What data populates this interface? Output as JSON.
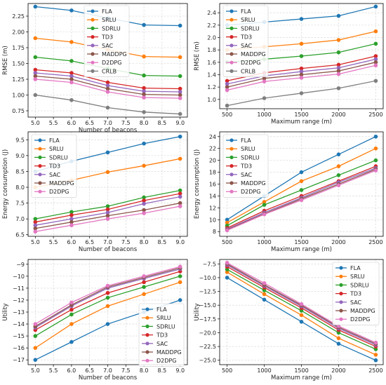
{
  "colors": {
    "FLA": "#1f77b4",
    "SRLU": "#ff7f0e",
    "SDRLU": "#2ca02c",
    "TD3": "#d62728",
    "SAC": "#9467bd",
    "MADDPG": "#8c564b",
    "D2DPG": "#e377c2",
    "CRLB": "#7f7f7f"
  },
  "chart_data": [
    {
      "type": "line",
      "xlabel": "Number of beacons",
      "ylabel": "RMSE (m)",
      "x": [
        5.0,
        6.0,
        7.0,
        8.0,
        9.0
      ],
      "xticks": [
        5.0,
        5.5,
        6.0,
        6.5,
        7.0,
        7.5,
        8.0,
        8.5,
        9.0
      ],
      "xtick_labels": [
        "5.0",
        "5.5",
        "6.0",
        "6.5",
        "7.0",
        "7.5",
        "8.0",
        "8.5",
        "9.0"
      ],
      "yticks": [
        0.75,
        1.0,
        1.25,
        1.5,
        1.75,
        2.0,
        2.25
      ],
      "ytick_labels": [
        "0.75",
        "1.00",
        "1.25",
        "1.50",
        "1.75",
        "2.00",
        "2.25"
      ],
      "xlim": [
        4.8,
        9.2
      ],
      "ylim": [
        0.65,
        2.45
      ],
      "grid": true,
      "legend": "top-center",
      "series": [
        {
          "name": "FLA",
          "values": [
            2.4,
            2.34,
            2.22,
            2.11,
            2.1
          ]
        },
        {
          "name": "SRLU",
          "values": [
            1.9,
            1.84,
            1.72,
            1.61,
            1.6
          ]
        },
        {
          "name": "SDRLU",
          "values": [
            1.6,
            1.54,
            1.42,
            1.31,
            1.3
          ]
        },
        {
          "name": "TD3",
          "values": [
            1.4,
            1.35,
            1.2,
            1.11,
            1.1
          ]
        },
        {
          "name": "SAC",
          "values": [
            1.35,
            1.3,
            1.15,
            1.06,
            1.05
          ]
        },
        {
          "name": "MADDPG",
          "values": [
            1.3,
            1.25,
            1.1,
            1.01,
            1.0
          ]
        },
        {
          "name": "D2DPG",
          "values": [
            1.25,
            1.2,
            1.05,
            0.96,
            0.95
          ]
        },
        {
          "name": "CRLB",
          "values": [
            1.0,
            0.92,
            0.8,
            0.73,
            0.7
          ]
        }
      ]
    },
    {
      "type": "line",
      "xlabel": "Maximum range (m)",
      "ylabel": "RMSE (m)",
      "x": [
        500,
        1000,
        1500,
        2000,
        2500
      ],
      "xticks": [
        500,
        1000,
        1500,
        2000,
        2500
      ],
      "xtick_labels": [
        "500",
        "1000",
        "1500",
        "2000",
        "2500"
      ],
      "yticks": [
        1.0,
        1.2,
        1.4,
        1.6,
        1.8,
        2.0,
        2.2,
        2.4
      ],
      "ytick_labels": [
        "1.0",
        "1.2",
        "1.4",
        "1.6",
        "1.8",
        "2.0",
        "2.2",
        "2.4"
      ],
      "xlim": [
        400,
        2600
      ],
      "ylim": [
        0.85,
        2.55
      ],
      "grid": true,
      "legend": "top-left",
      "series": [
        {
          "name": "FLA",
          "values": [
            2.2,
            2.25,
            2.3,
            2.35,
            2.5
          ]
        },
        {
          "name": "SRLU",
          "values": [
            1.8,
            1.85,
            1.9,
            1.96,
            2.1
          ]
        },
        {
          "name": "SDRLU",
          "values": [
            1.6,
            1.65,
            1.7,
            1.76,
            1.9
          ]
        },
        {
          "name": "TD3",
          "values": [
            1.3,
            1.43,
            1.5,
            1.56,
            1.7
          ]
        },
        {
          "name": "SAC",
          "values": [
            1.25,
            1.38,
            1.45,
            1.51,
            1.65
          ]
        },
        {
          "name": "MADDPG",
          "values": [
            1.2,
            1.34,
            1.4,
            1.46,
            1.6
          ]
        },
        {
          "name": "D2DPG",
          "values": [
            1.15,
            1.29,
            1.35,
            1.41,
            1.55
          ]
        },
        {
          "name": "CRLB",
          "values": [
            0.9,
            1.02,
            1.1,
            1.18,
            1.3
          ]
        }
      ]
    },
    {
      "type": "line",
      "xlabel": "Number of beacons",
      "ylabel": "Energy consumption (J)",
      "x": [
        5.0,
        6.0,
        7.0,
        8.0,
        9.0
      ],
      "xticks": [
        5.0,
        5.5,
        6.0,
        6.5,
        7.0,
        7.5,
        8.0,
        8.5,
        9.0
      ],
      "xtick_labels": [
        "5.0",
        "5.5",
        "6.0",
        "6.5",
        "7.0",
        "7.5",
        "8.0",
        "8.5",
        "9.0"
      ],
      "yticks": [
        6.5,
        7.0,
        7.5,
        8.0,
        8.5,
        9.0,
        9.5
      ],
      "ytick_labels": [
        "6.5",
        "7.0",
        "7.5",
        "8.0",
        "8.5",
        "9.0",
        "9.5"
      ],
      "xlim": [
        4.8,
        9.2
      ],
      "ylim": [
        6.45,
        9.75
      ],
      "grid": true,
      "legend": "top-left",
      "series": [
        {
          "name": "FLA",
          "values": [
            8.5,
            8.82,
            9.1,
            9.38,
            9.6
          ]
        },
        {
          "name": "SRLU",
          "values": [
            8.0,
            8.22,
            8.48,
            8.68,
            8.9
          ]
        },
        {
          "name": "SDRLU",
          "values": [
            7.0,
            7.22,
            7.4,
            7.68,
            7.9
          ]
        },
        {
          "name": "TD3",
          "values": [
            6.9,
            7.12,
            7.3,
            7.58,
            7.8
          ]
        },
        {
          "name": "SAC",
          "values": [
            6.8,
            7.0,
            7.2,
            7.48,
            7.7
          ]
        },
        {
          "name": "MADDPG",
          "values": [
            6.7,
            6.9,
            7.1,
            7.28,
            7.5
          ]
        },
        {
          "name": "D2DPG",
          "values": [
            6.6,
            6.8,
            7.0,
            7.18,
            7.4
          ]
        }
      ]
    },
    {
      "type": "line",
      "xlabel": "Maximum range (m)",
      "ylabel": "Energy consumption (J)",
      "x": [
        500,
        1000,
        1500,
        2000,
        2500
      ],
      "xticks": [
        500,
        1000,
        1500,
        2000,
        2500
      ],
      "xtick_labels": [
        "500",
        "1000",
        "1500",
        "2000",
        "2500"
      ],
      "yticks": [
        8,
        10,
        12,
        14,
        16,
        18,
        20,
        22,
        24
      ],
      "ytick_labels": [
        "8",
        "10",
        "12",
        "14",
        "16",
        "18",
        "20",
        "22",
        "24"
      ],
      "xlim": [
        400,
        2600
      ],
      "ylim": [
        7.2,
        24.8
      ],
      "grid": true,
      "legend": "top-left",
      "series": [
        {
          "name": "FLA",
          "values": [
            10.0,
            14.0,
            18.0,
            21.0,
            24.0
          ]
        },
        {
          "name": "SRLU",
          "values": [
            9.5,
            13.0,
            16.5,
            19.0,
            22.0
          ]
        },
        {
          "name": "SDRLU",
          "values": [
            9.0,
            12.5,
            15.0,
            17.5,
            20.0
          ]
        },
        {
          "name": "TD3",
          "values": [
            8.6,
            11.5,
            14.0,
            16.5,
            19.0
          ]
        },
        {
          "name": "SAC",
          "values": [
            8.4,
            11.2,
            13.7,
            16.3,
            18.7
          ]
        },
        {
          "name": "MADDPG",
          "values": [
            8.3,
            11.0,
            13.5,
            16.0,
            18.5
          ]
        },
        {
          "name": "D2DPG",
          "values": [
            8.2,
            10.9,
            13.3,
            15.8,
            18.3
          ]
        }
      ]
    },
    {
      "type": "line",
      "xlabel": "Number of beacons",
      "ylabel": "Utility",
      "x": [
        5.0,
        6.0,
        7.0,
        8.0,
        9.0
      ],
      "xticks": [
        5.0,
        5.5,
        6.0,
        6.5,
        7.0,
        7.5,
        8.0,
        8.5,
        9.0
      ],
      "xtick_labels": [
        "5.0",
        "5.5",
        "6.0",
        "6.5",
        "7.0",
        "7.5",
        "8.0",
        "8.5",
        "9.0"
      ],
      "yticks": [
        -17,
        -16,
        -15,
        -14,
        -13,
        -12,
        -11,
        -10,
        -9
      ],
      "ytick_labels": [
        "−17",
        "−16",
        "−15",
        "−14",
        "−13",
        "−12",
        "−11",
        "−10",
        "−9"
      ],
      "xlim": [
        4.8,
        9.2
      ],
      "ylim": [
        -17.4,
        -8.6
      ],
      "grid": true,
      "legend": "bottom-right",
      "series": [
        {
          "name": "FLA",
          "values": [
            -17.0,
            -15.5,
            -14.0,
            -13.0,
            -12.0
          ]
        },
        {
          "name": "SRLU",
          "values": [
            -16.0,
            -14.0,
            -12.5,
            -11.5,
            -10.5
          ]
        },
        {
          "name": "SDRLU",
          "values": [
            -15.0,
            -13.2,
            -11.8,
            -10.9,
            -10.0
          ]
        },
        {
          "name": "TD3",
          "values": [
            -14.5,
            -12.8,
            -11.4,
            -10.5,
            -9.6
          ]
        },
        {
          "name": "SAC",
          "values": [
            -14.3,
            -12.5,
            -11.0,
            -10.2,
            -9.4
          ]
        },
        {
          "name": "MADDPG",
          "values": [
            -14.2,
            -12.4,
            -10.9,
            -10.1,
            -9.3
          ]
        },
        {
          "name": "D2DPG",
          "values": [
            -14.0,
            -12.2,
            -10.8,
            -10.0,
            -9.2
          ]
        }
      ]
    },
    {
      "type": "line",
      "xlabel": "Maximum range (m)",
      "ylabel": "Utility",
      "x": [
        500,
        1000,
        1500,
        2000,
        2500
      ],
      "xticks": [
        500,
        1000,
        1500,
        2000,
        2500
      ],
      "xtick_labels": [
        "500",
        "1000",
        "1500",
        "2000",
        "2500"
      ],
      "yticks": [
        -25.0,
        -22.5,
        -20.0,
        -17.5,
        -15.0,
        -12.5,
        -10.0,
        -7.5
      ],
      "ytick_labels": [
        "−25.0",
        "−22.5",
        "−20.0",
        "−17.5",
        "−15.0",
        "−12.5",
        "−10.0",
        "−7.5"
      ],
      "xlim": [
        400,
        2600
      ],
      "ylim": [
        -25.8,
        -6.7
      ],
      "grid": true,
      "legend": "top-right",
      "series": [
        {
          "name": "FLA",
          "values": [
            -10.0,
            -14.0,
            -18.0,
            -22.0,
            -25.0
          ]
        },
        {
          "name": "SRLU",
          "values": [
            -9.0,
            -13.0,
            -16.8,
            -21.0,
            -24.0
          ]
        },
        {
          "name": "SDRLU",
          "values": [
            -8.5,
            -12.3,
            -16.0,
            -20.0,
            -23.0
          ]
        },
        {
          "name": "TD3",
          "values": [
            -8.0,
            -11.8,
            -15.5,
            -19.5,
            -22.5
          ]
        },
        {
          "name": "SAC",
          "values": [
            -7.7,
            -11.5,
            -15.2,
            -19.2,
            -22.2
          ]
        },
        {
          "name": "MADDPG",
          "values": [
            -7.5,
            -11.3,
            -15.0,
            -19.0,
            -22.0
          ]
        },
        {
          "name": "D2DPG",
          "values": [
            -7.3,
            -11.0,
            -14.8,
            -18.8,
            -21.8
          ]
        }
      ]
    }
  ]
}
